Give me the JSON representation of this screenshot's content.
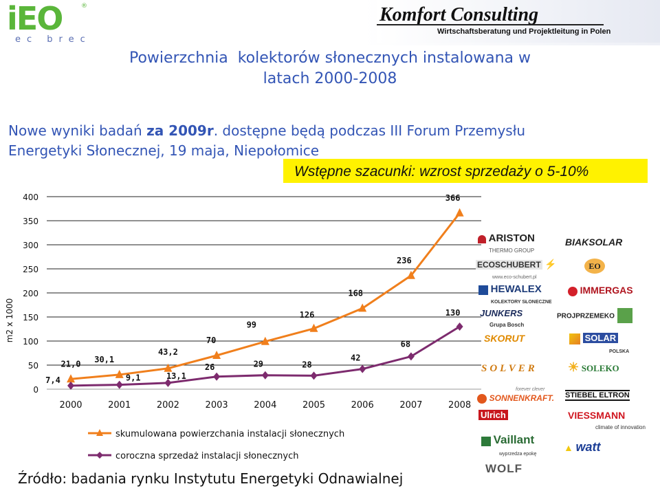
{
  "header": {
    "ieo_logo_text": "iEO",
    "ieo_logo_subtext": "ec brec",
    "ieo_reg_mark": "®",
    "company_name": "Komfort Consulting",
    "company_tagline": "Wirtschaftsberatung und Projektleitung in Polen"
  },
  "title_line1": "Powierzchnia  kolektorów słonecznych instalowana w",
  "title_line2": "latach 2000-2008",
  "note": {
    "before": "Nowe wyniki badań ",
    "bold": "za 2009r",
    "after_line1": ". dostępne będą podczas III Forum Przemysłu",
    "line2": "Energetyki Słonecznej, 19 maja, Niepołomice"
  },
  "highlight_text": "Wstępne szacunki: wzrost sprzedaży o 5-10%",
  "source_text": "Źródło: badania rynku Instytutu Energetyki Odnawialnej",
  "logos": [
    "ARISTON",
    "THERMO GROUP",
    "BIAKSOLAR",
    "ECOSCHUBERT",
    "www.eco-schubert.pl",
    "EO",
    "HEWALEX",
    "KOLEKTORY SŁONECZNE",
    "IMMERGAS",
    "JUNKERS",
    "Grupa Bosch",
    "PROJPRZEMEKO",
    "SKORUT",
    "SOLAR",
    "POLSKA",
    "SOLVER",
    "SOLEKO",
    "forever clever",
    "SONNENKRAFT.",
    "STIEBEL ELTRON",
    "Ulrich",
    "VIESSMANN",
    "climate of innovation",
    "Vaillant",
    "wyprzedza epokę",
    "watt",
    "WOLF"
  ],
  "colors": {
    "title_blue": "#3355b5",
    "series_orange": "#f07f1c",
    "series_purple": "#7d2b6e",
    "highlight_yellow": "#fff200",
    "ieo_green": "#5ab63a"
  },
  "chart_data": {
    "type": "line",
    "ylabel": "m2 x 1000",
    "ylim": [
      0,
      400
    ],
    "yticks": [
      0,
      50,
      100,
      150,
      200,
      250,
      300,
      350,
      400
    ],
    "grid": true,
    "legend_position": "bottom",
    "categories": [
      "2000",
      "2001",
      "2002",
      "2003",
      "2004",
      "2005",
      "2006",
      "2007",
      "2008"
    ],
    "series": [
      {
        "name": "skumulowana powierzchania instalacji słonecznych",
        "marker": "triangle",
        "values": [
          21.0,
          30.1,
          43.2,
          70,
          99,
          126,
          168,
          236,
          366
        ],
        "labels": [
          "21,0",
          "30,1",
          "43,2",
          "70",
          "99",
          "126",
          "168",
          "236",
          "366"
        ]
      },
      {
        "name": "coroczna sprzedaż instalacji słonecznych",
        "marker": "diamond",
        "values": [
          7.4,
          9.1,
          13.1,
          26,
          29,
          28,
          42,
          68,
          130
        ],
        "labels": [
          "7,4",
          "9,1",
          "13,1",
          "26",
          "29",
          "28",
          "42",
          "68",
          "130"
        ]
      }
    ]
  }
}
